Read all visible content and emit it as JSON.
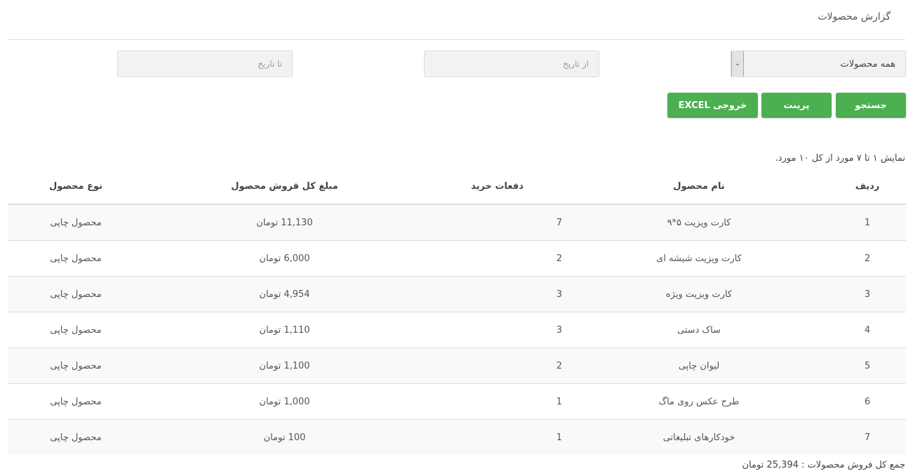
{
  "page_title": "گزارش محصولات",
  "filters": {
    "product_select": "همه محصولات",
    "from_date_placeholder": "از تاریخ",
    "to_date_placeholder": "تا تاریخ"
  },
  "buttons": {
    "search": "جستجو",
    "print": "پرینت",
    "excel": "خروجی EXCEL"
  },
  "summary": "نمایش ۱ تا ۷ مورد از کل ۱۰ مورد.",
  "table": {
    "headers": [
      "ردیف",
      "نام محصول",
      "دفعات خرید",
      "مبلغ کل فروش محصول",
      "نوع محصول"
    ],
    "rows": [
      [
        "1",
        "کارت ویزیت ۵*۹",
        "7",
        "11,130 تومان",
        "محصول چاپی"
      ],
      [
        "2",
        "کارت ویزیت شیشه ای",
        "2",
        "6,000 تومان",
        "محصول چاپی"
      ],
      [
        "3",
        "کارت ویزیت ویژه",
        "3",
        "4,954 تومان",
        "محصول چاپی"
      ],
      [
        "4",
        "ساک دستی",
        "3",
        "1,110 تومان",
        "محصول چاپی"
      ],
      [
        "5",
        "لیوان چاپی",
        "2",
        "1,100 تومان",
        "محصول چاپی"
      ],
      [
        "6",
        "طرح عکس روی ماگ",
        "1",
        "1,000 تومان",
        "محصول چاپی"
      ],
      [
        "7",
        "خودکارهای تبلیغاتی",
        "1",
        "100 تومان",
        "محصول چاپی"
      ]
    ]
  },
  "total": "جمع کل فروش محصولات : 25,394 تومان",
  "colors": {
    "button": "#4caf50"
  }
}
